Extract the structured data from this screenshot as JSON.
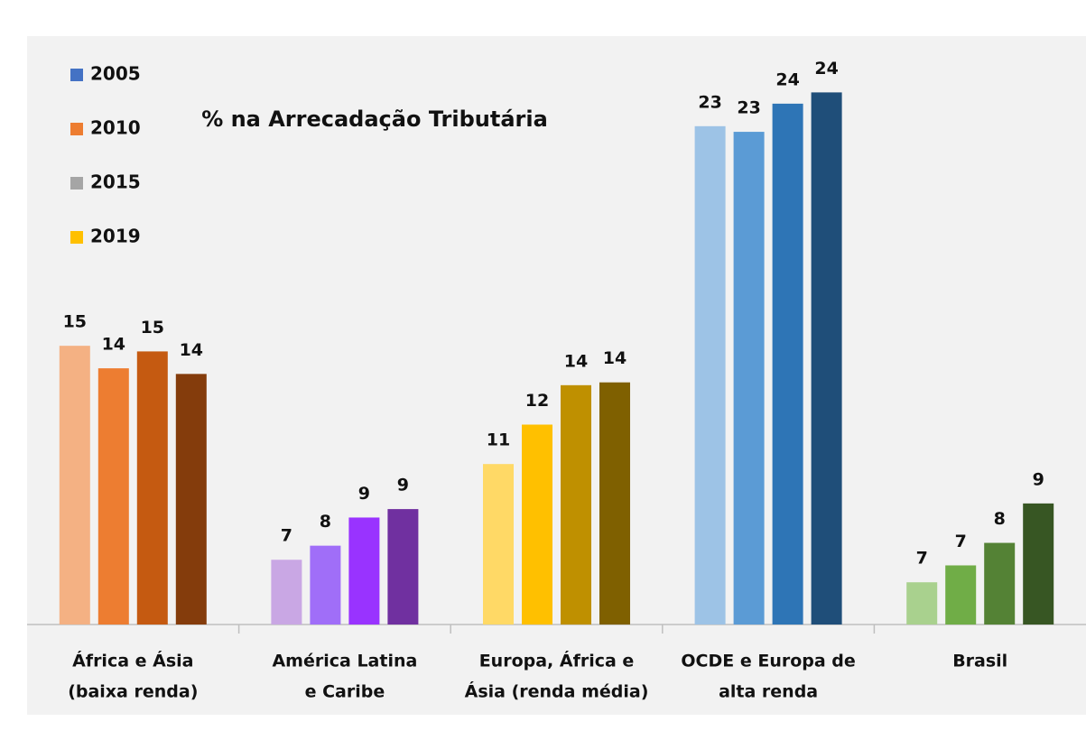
{
  "chart_data": {
    "type": "bar",
    "title": "% na Arrecadação Tributária",
    "categories": [
      [
        "África e Ásia",
        "(baixa renda)"
      ],
      [
        "América Latina",
        "e Caribe"
      ],
      [
        "Europa, África e",
        "Ásia (renda média)"
      ],
      [
        "OCDE e Europa de",
        "alta renda"
      ],
      [
        "Brasil"
      ]
    ],
    "series": [
      {
        "name": "2005",
        "color": "#4472c4",
        "bar_colors": [
          "#f4b183",
          "#c9a7e4",
          "#ffd966",
          "#9dc3e6",
          "#a9d18e"
        ],
        "values": [
          15.0,
          7.4,
          10.8,
          22.8,
          6.6
        ],
        "value_labels": [
          "15",
          "7",
          "11",
          "23",
          "7"
        ]
      },
      {
        "name": "2010",
        "color": "#ed7d31",
        "bar_colors": [
          "#ed7d31",
          "#a06ef8",
          "#ffc000",
          "#5b9bd5",
          "#70ad47"
        ],
        "values": [
          14.2,
          7.9,
          12.2,
          22.6,
          7.2
        ],
        "value_labels": [
          "14",
          "8",
          "12",
          "23",
          "7"
        ]
      },
      {
        "name": "2015",
        "color": "#a5a5a5",
        "bar_colors": [
          "#c55a11",
          "#9933ff",
          "#bf9000",
          "#2e75b6",
          "#548235"
        ],
        "values": [
          14.8,
          8.9,
          13.6,
          23.6,
          8.0
        ],
        "value_labels": [
          "15",
          "9",
          "14",
          "24",
          "8"
        ]
      },
      {
        "name": "2019",
        "color": "#ffc000",
        "bar_colors": [
          "#843c0c",
          "#7030a0",
          "#7f6000",
          "#1f4e79",
          "#375623"
        ],
        "values": [
          14.0,
          9.2,
          13.7,
          24.0,
          9.4
        ],
        "value_labels": [
          "14",
          "9",
          "14",
          "24",
          "9"
        ]
      }
    ],
    "ylim": [
      5.1,
      26
    ]
  }
}
